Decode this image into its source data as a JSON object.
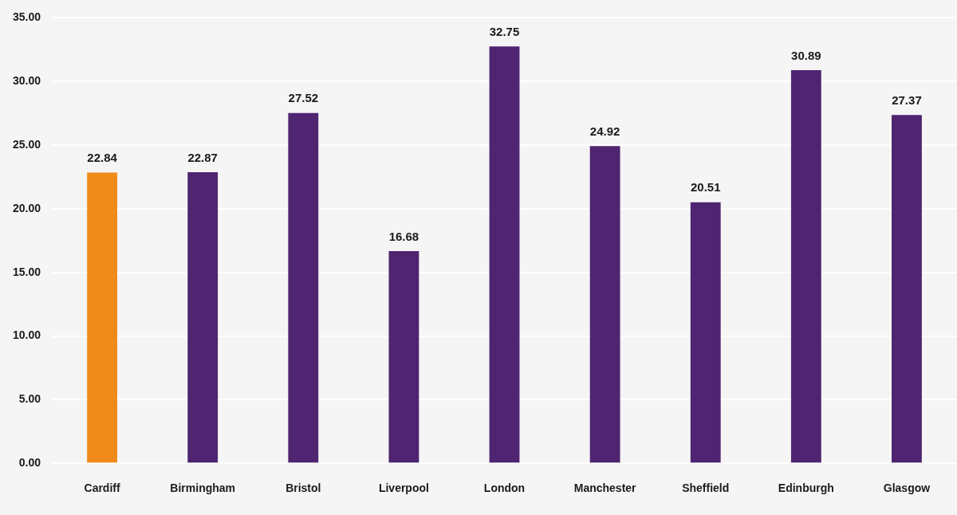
{
  "chart_data": {
    "type": "bar",
    "categories": [
      "Cardiff",
      "Birmingham",
      "Bristol",
      "Liverpool",
      "London",
      "Manchester",
      "Sheffield",
      "Edinburgh",
      "Glasgow"
    ],
    "values": [
      22.84,
      22.87,
      27.52,
      16.68,
      32.75,
      24.92,
      20.51,
      30.89,
      27.37
    ],
    "colors": [
      "#f08a1b",
      "#4f2470",
      "#4f2470",
      "#4f2470",
      "#4f2470",
      "#4f2470",
      "#4f2470",
      "#4f2470",
      "#4f2470"
    ],
    "ylim": [
      0,
      35
    ],
    "yticks": [
      {
        "value": 0,
        "label": "0.00"
      },
      {
        "value": 5,
        "label": "5.00"
      },
      {
        "value": 10,
        "label": "10.00"
      },
      {
        "value": 15,
        "label": "15.00"
      },
      {
        "value": 20,
        "label": "20.00"
      },
      {
        "value": 25,
        "label": "25.00"
      },
      {
        "value": 30,
        "label": "30.00"
      },
      {
        "value": 35,
        "label": "35.00"
      }
    ],
    "grid": "y",
    "data_labels": true,
    "legend": false
  }
}
